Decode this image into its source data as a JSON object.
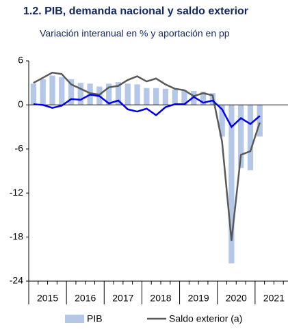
{
  "chart_data": {
    "type": "bar-line",
    "title": "1.2. PIB, demanda nacional y saldo exterior",
    "subtitle": "Variación interanual en % y aportación en pp",
    "categories": [
      null,
      null,
      null,
      null,
      null,
      null,
      null,
      null,
      null,
      null,
      null,
      null,
      null,
      null,
      null,
      null,
      null,
      null,
      null,
      null,
      null,
      null,
      null,
      null,
      null
    ],
    "year_labels": [
      "2015",
      "2016",
      "2017",
      "2018",
      "2019",
      "2020",
      "2021"
    ],
    "series": [
      {
        "name": "PIB",
        "kind": "bar",
        "color": "#b4c7e7",
        "values": [
          2.9,
          3.5,
          4.0,
          3.8,
          3.5,
          3.0,
          2.9,
          2.5,
          2.9,
          3.1,
          2.9,
          2.8,
          2.3,
          2.3,
          2.2,
          2.1,
          2.0,
          1.9,
          1.8,
          1.6,
          -4.3,
          -21.6,
          -8.6,
          -8.9,
          -4.3
        ]
      },
      {
        "name": "Saldo exterior (a)",
        "kind": "line",
        "color": "#595959",
        "values": [
          3.0,
          3.7,
          4.4,
          4.2,
          2.8,
          2.2,
          1.6,
          1.4,
          2.4,
          2.6,
          3.4,
          3.9,
          3.2,
          3.6,
          2.8,
          2.2,
          2.0,
          1.2,
          1.6,
          1.3,
          -5.0,
          -18.5,
          -6.8,
          -6.3,
          -2.4
        ]
      },
      {
        "kind": "line",
        "color": "#0000ee",
        "values": [
          0.1,
          0.0,
          -0.4,
          -0.1,
          0.8,
          0.7,
          1.4,
          1.2,
          0.2,
          0.6,
          -0.6,
          -0.9,
          -0.5,
          -1.4,
          -0.3,
          0.1,
          0.1,
          1.1,
          0.3,
          0.6,
          -0.6,
          -3.0,
          -1.8,
          -2.6,
          -1.5
        ]
      }
    ],
    "ylim": [
      -24,
      6
    ],
    "yticks": [
      6,
      0,
      -6,
      -12,
      -18,
      -24
    ]
  }
}
